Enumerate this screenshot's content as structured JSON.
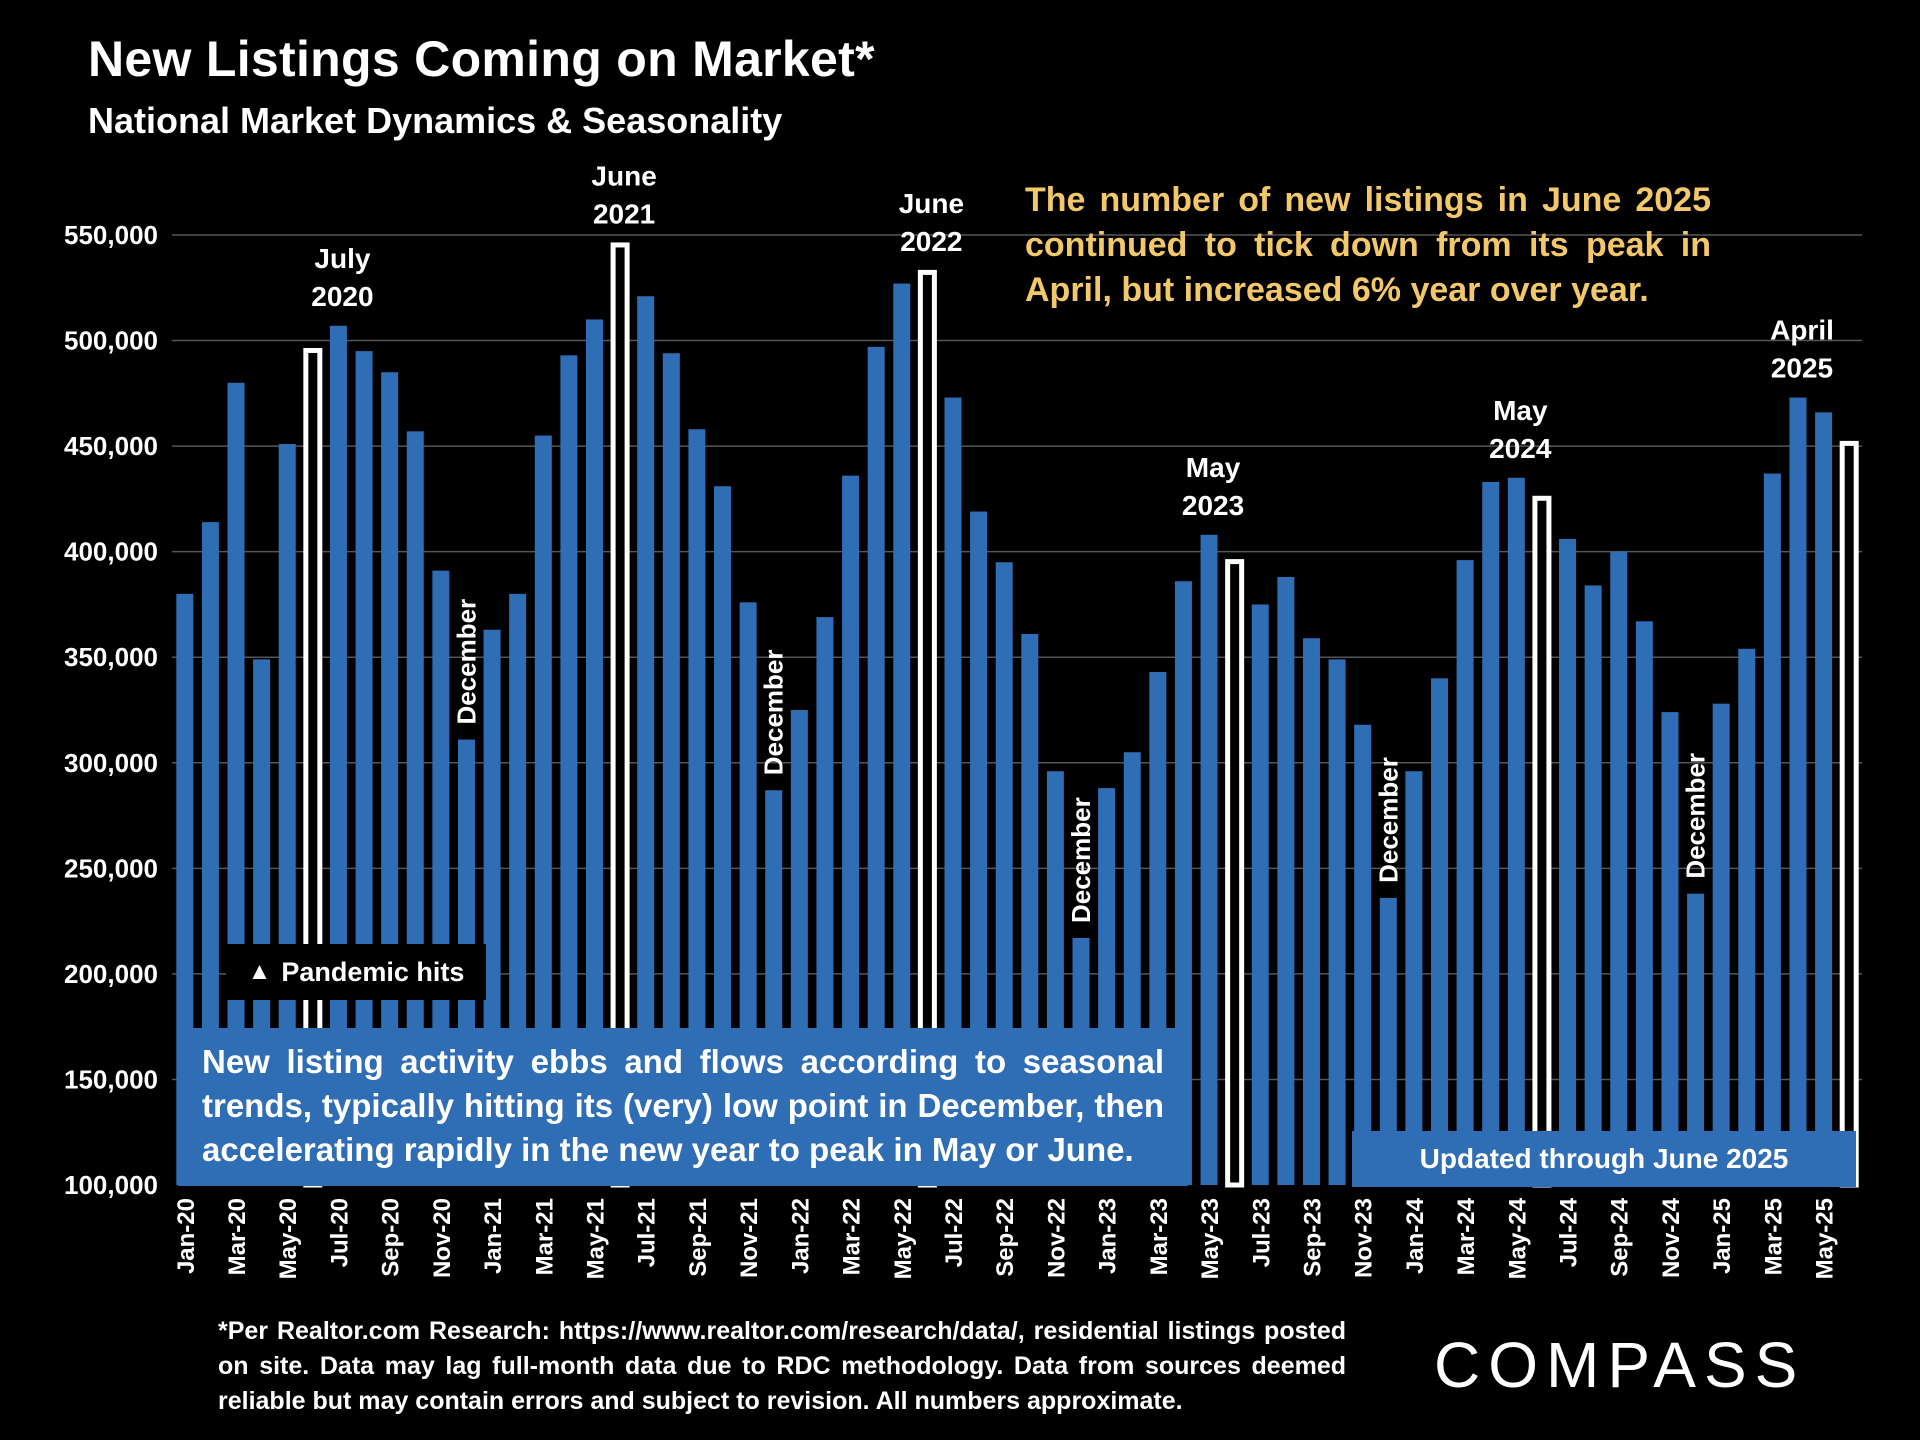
{
  "header": {
    "title": "New Listings Coming on Market*",
    "subtitle": "National Market Dynamics & Seasonality"
  },
  "annotations": {
    "top_note": "The number of new listings in June 2025 continued to tick down from its peak in April, but increased 6% year over year.",
    "pandemic": "Pandemic hits",
    "pandemic_marker": "▲",
    "seasonal_note": "New listing activity ebbs and flows according to seasonal trends, typically hitting its (very) low point in December, then accelerating rapidly in the new year to peak in May or June.",
    "updated": "Updated through June 2025"
  },
  "footnote": "*Per Realtor.com Research:  https://www.realtor.com/research/data/, residential listings posted on site. Data may lag full-month data due to RDC methodology. Data from sources deemed reliable but may contain errors and subject to revision. All numbers approximate.",
  "logo": "COMPASS",
  "colors": {
    "background": "#000000",
    "bar": "#2f6db5",
    "highlight_bar": "#ffffff",
    "note_text": "#f3c86b",
    "grid": "#555555"
  },
  "chart_data": {
    "type": "bar",
    "ylim": [
      100000,
      550000
    ],
    "yticks": [
      "100,000",
      "150,000",
      "200,000",
      "250,000",
      "300,000",
      "350,000",
      "400,000",
      "450,000",
      "500,000",
      "550,000"
    ],
    "grid": true,
    "categories": [
      "Jan-20",
      "Feb-20",
      "Mar-20",
      "Apr-20",
      "May-20",
      "Jun-20",
      "Jul-20",
      "Aug-20",
      "Sep-20",
      "Oct-20",
      "Nov-20",
      "Dec-20",
      "Jan-21",
      "Feb-21",
      "Mar-21",
      "Apr-21",
      "May-21",
      "Jun-21",
      "Jul-21",
      "Aug-21",
      "Sep-21",
      "Oct-21",
      "Nov-21",
      "Dec-21",
      "Jan-22",
      "Feb-22",
      "Mar-22",
      "Apr-22",
      "May-22",
      "Jun-22",
      "Jul-22",
      "Aug-22",
      "Sep-22",
      "Oct-22",
      "Nov-22",
      "Dec-22",
      "Jan-23",
      "Feb-23",
      "Mar-23",
      "Apr-23",
      "May-23",
      "Jun-23",
      "Jul-23",
      "Aug-23",
      "Sep-23",
      "Oct-23",
      "Nov-23",
      "Dec-23",
      "Jan-24",
      "Feb-24",
      "Mar-24",
      "Apr-24",
      "May-24",
      "Jun-24",
      "Jul-24",
      "Aug-24",
      "Sep-24",
      "Oct-24",
      "Nov-24",
      "Dec-24",
      "Jan-25",
      "Feb-25",
      "Mar-25",
      "Apr-25",
      "May-25",
      "Jun-25"
    ],
    "x_tick_labels": [
      "Jan-20",
      "Mar-20",
      "May-20",
      "Jul-20",
      "Sep-20",
      "Nov-20",
      "Jan-21",
      "Mar-21",
      "May-21",
      "Jul-21",
      "Sep-21",
      "Nov-21",
      "Jan-22",
      "Mar-22",
      "May-22",
      "Jul-22",
      "Sep-22",
      "Nov-22",
      "Jan-23",
      "Mar-23",
      "May-23",
      "Jul-23",
      "Sep-23",
      "Nov-23",
      "Jan-24",
      "Mar-24",
      "May-24",
      "Jul-24",
      "Sep-24",
      "Nov-24",
      "Jan-25",
      "Mar-25",
      "May-25"
    ],
    "values": [
      380000,
      414000,
      480000,
      349000,
      451000,
      496000,
      507000,
      495000,
      485000,
      457000,
      391000,
      311000,
      363000,
      380000,
      455000,
      493000,
      510000,
      546000,
      521000,
      494000,
      458000,
      431000,
      376000,
      287000,
      325000,
      369000,
      436000,
      497000,
      527000,
      533000,
      473000,
      419000,
      395000,
      361000,
      296000,
      217000,
      288000,
      305000,
      343000,
      386000,
      408000,
      396000,
      375000,
      388000,
      359000,
      349000,
      318000,
      236000,
      296000,
      340000,
      396000,
      433000,
      435000,
      426000,
      406000,
      384000,
      400000,
      367000,
      324000,
      238000,
      328000,
      354000,
      437000,
      473000,
      466000,
      452000
    ],
    "highlighted_indices": [
      5,
      17,
      29,
      41,
      53,
      65
    ],
    "peak_labels": [
      {
        "index": 6,
        "lines": [
          "July",
          "2020"
        ]
      },
      {
        "index": 17,
        "lines": [
          "June",
          "2021"
        ]
      },
      {
        "index": 29,
        "lines": [
          "June",
          "2022"
        ]
      },
      {
        "index": 40,
        "lines": [
          "May",
          "2023"
        ]
      },
      {
        "index": 52,
        "lines": [
          "May",
          "2024"
        ]
      },
      {
        "index": 63,
        "lines": [
          "April",
          "2025"
        ]
      }
    ],
    "december_label": "December",
    "december_indices": [
      11,
      23,
      35,
      47,
      59
    ]
  }
}
